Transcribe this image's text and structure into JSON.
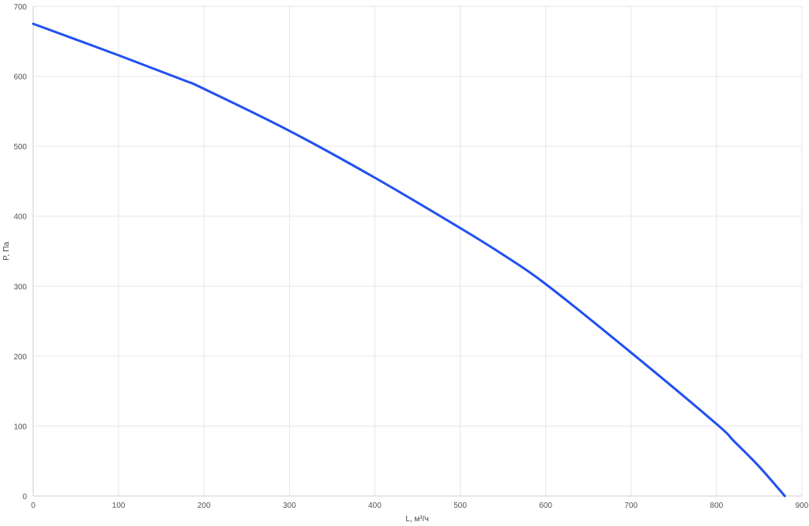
{
  "chart_data": {
    "type": "line",
    "title": "",
    "xlabel": "L, м³/ч",
    "ylabel": "P, Па",
    "xlim": [
      0,
      900
    ],
    "ylim": [
      0,
      700
    ],
    "xticks": [
      0,
      100,
      200,
      300,
      400,
      500,
      600,
      700,
      800,
      900
    ],
    "yticks": [
      0,
      100,
      200,
      300,
      400,
      500,
      600,
      700
    ],
    "grid": true,
    "legend": "none",
    "series": [
      {
        "color": "#2251f0",
        "x": [
          0,
          100,
          175,
          200,
          300,
          400,
          500,
          550,
          600,
          700,
          800,
          820,
          850,
          880
        ],
        "y": [
          675,
          630,
          595,
          582,
          522,
          455,
          383,
          345,
          303,
          205,
          103,
          79,
          42,
          0
        ]
      }
    ]
  }
}
